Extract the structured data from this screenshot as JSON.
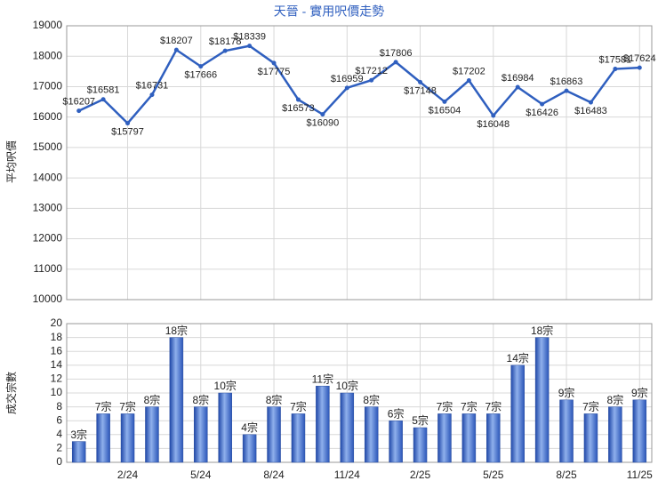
{
  "chart_data": [
    {
      "type": "line",
      "title": "天晉 - 實用呎價走勢",
      "y_label": "平均呎價",
      "color": "#2f5fbf",
      "grid": true,
      "categories": [
        null,
        null,
        "2/24",
        null,
        null,
        "5/24",
        null,
        null,
        "8/24",
        null,
        null,
        "11/24",
        null,
        null,
        "2/25",
        null,
        null,
        "5/25",
        null,
        null,
        "8/25",
        null,
        null,
        "11/25"
      ],
      "values": [
        16207,
        16581,
        15797,
        16731,
        18207,
        17666,
        18178,
        18339,
        17775,
        16573,
        16090,
        16959,
        17212,
        17806,
        17148,
        16504,
        17202,
        16048,
        16984,
        16426,
        16863,
        16483,
        17581,
        17624
      ],
      "value_labels": [
        "$16207",
        "$16581",
        "$15797",
        "$16731",
        "$18207",
        "$17666",
        "$18178",
        "$18339",
        "$17775",
        "$16573",
        "$16090",
        "$16959",
        "$17212",
        "$17806",
        "$17148",
        "$16504",
        "$17202",
        "$16048",
        "$16984",
        "$16426",
        "$16863",
        "$16483",
        "$17581",
        "$17624"
      ],
      "ylim": [
        10000,
        19000
      ],
      "yticks": [
        10000,
        11000,
        12000,
        13000,
        14000,
        15000,
        16000,
        17000,
        18000,
        19000
      ]
    },
    {
      "type": "bar",
      "y_label": "成交宗數",
      "color": "#3b68c4",
      "grid": true,
      "categories": [
        null,
        null,
        "2/24",
        null,
        null,
        "5/24",
        null,
        null,
        "8/24",
        null,
        null,
        "11/24",
        null,
        null,
        "2/25",
        null,
        null,
        "5/25",
        null,
        null,
        "8/25",
        null,
        null,
        "11/25"
      ],
      "values": [
        3,
        7,
        7,
        8,
        18,
        8,
        10,
        4,
        8,
        7,
        11,
        10,
        8,
        6,
        5,
        7,
        7,
        7,
        14,
        18,
        9,
        7,
        8,
        9
      ],
      "value_labels": [
        "3宗",
        "7宗",
        "7宗",
        "8宗",
        "18宗",
        "8宗",
        "10宗",
        "4宗",
        "8宗",
        "7宗",
        "11宗",
        "10宗",
        "8宗",
        "6宗",
        "5宗",
        "7宗",
        "7宗",
        "7宗",
        "14宗",
        "18宗",
        "9宗",
        "7宗",
        "8宗",
        "9宗"
      ],
      "ylim": [
        0,
        20
      ],
      "yticks": [
        0,
        2,
        4,
        6,
        8,
        10,
        12,
        14,
        16,
        18,
        20
      ]
    }
  ]
}
